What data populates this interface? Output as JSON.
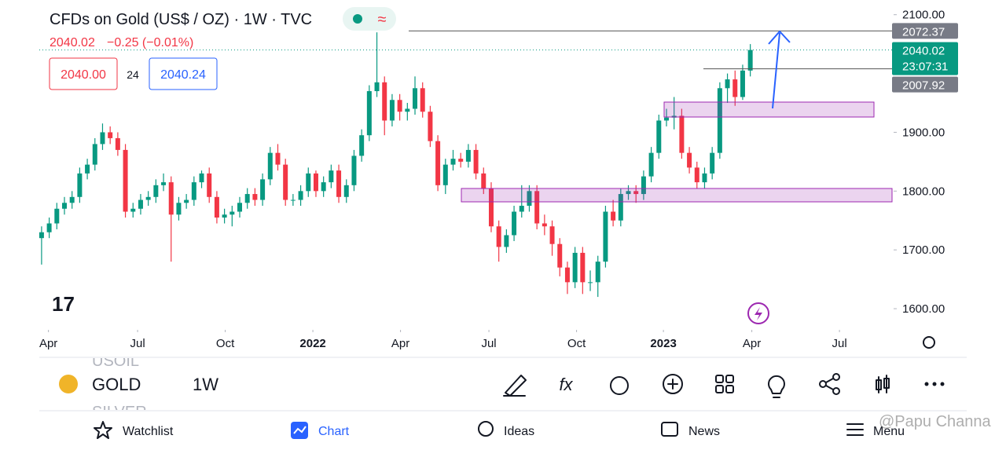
{
  "header": {
    "title": "CFDs on Gold (US$ / OZ) · 1W · TVC",
    "price": "2040.02",
    "change": "−0.25 (−0.01%)",
    "bid": "2040.00",
    "spread": "24",
    "ask": "2040.24"
  },
  "chart_data": {
    "type": "candlestick",
    "up_color": "#089981",
    "down_color": "#f23645",
    "x": [
      0,
      1,
      2,
      3,
      4,
      5,
      6,
      7,
      8,
      9,
      10,
      11,
      12,
      13,
      14,
      15,
      16,
      17,
      18,
      19,
      20,
      21,
      22,
      23,
      24,
      25,
      26,
      27,
      28,
      29,
      30,
      31,
      32,
      33,
      34,
      35,
      36,
      37,
      38,
      39,
      40,
      41,
      42,
      43,
      44,
      45,
      46,
      47,
      48,
      49,
      50,
      51,
      52,
      53,
      54,
      55,
      56,
      57,
      58,
      59,
      60,
      61,
      62,
      63,
      64,
      65,
      66,
      67,
      68,
      69,
      70,
      71,
      72,
      73,
      74,
      75,
      76,
      77,
      78,
      79,
      80,
      81,
      82,
      83,
      84,
      85,
      86,
      87,
      88,
      89,
      90,
      91,
      92,
      93
    ],
    "open": [
      1720,
      1730,
      1745,
      1770,
      1780,
      1790,
      1830,
      1845,
      1880,
      1900,
      1890,
      1870,
      1765,
      1770,
      1785,
      1790,
      1810,
      1815,
      1760,
      1780,
      1785,
      1815,
      1830,
      1790,
      1755,
      1760,
      1765,
      1780,
      1795,
      1785,
      1820,
      1865,
      1845,
      1785,
      1785,
      1800,
      1830,
      1800,
      1815,
      1835,
      1790,
      1810,
      1860,
      1895,
      1970,
      1985,
      1920,
      1955,
      1935,
      1940,
      1975,
      1935,
      1885,
      1810,
      1845,
      1855,
      1850,
      1870,
      1830,
      1805,
      1740,
      1705,
      1725,
      1765,
      1775,
      1800,
      1745,
      1740,
      1710,
      1670,
      1645,
      1695,
      1645,
      1645,
      1680,
      1765,
      1750,
      1795,
      1800,
      1795,
      1825,
      1865,
      1920,
      1925,
      1928,
      1865,
      1840,
      1815,
      1830,
      1865,
      1975,
      1990,
      1960,
      2005
    ],
    "high": [
      1740,
      1755,
      1780,
      1790,
      1800,
      1840,
      1855,
      1890,
      1915,
      1910,
      1900,
      1880,
      1780,
      1795,
      1800,
      1820,
      1830,
      1825,
      1790,
      1795,
      1825,
      1835,
      1840,
      1800,
      1770,
      1775,
      1790,
      1805,
      1805,
      1830,
      1875,
      1880,
      1855,
      1795,
      1810,
      1840,
      1835,
      1825,
      1845,
      1845,
      1820,
      1870,
      1905,
      1980,
      2070,
      1995,
      1965,
      1965,
      1950,
      1995,
      1985,
      1945,
      1895,
      1855,
      1870,
      1865,
      1880,
      1880,
      1840,
      1815,
      1750,
      1735,
      1775,
      1810,
      1810,
      1810,
      1760,
      1750,
      1720,
      1680,
      1705,
      1705,
      1665,
      1690,
      1775,
      1785,
      1805,
      1810,
      1810,
      1835,
      1875,
      1930,
      1940,
      1960,
      1940,
      1875,
      1850,
      1840,
      1875,
      1985,
      2000,
      2005,
      2015,
      2050
    ],
    "low": [
      1675,
      1720,
      1735,
      1760,
      1770,
      1780,
      1820,
      1835,
      1870,
      1880,
      1860,
      1755,
      1755,
      1760,
      1775,
      1780,
      1800,
      1680,
      1750,
      1770,
      1775,
      1805,
      1780,
      1745,
      1745,
      1740,
      1755,
      1770,
      1775,
      1775,
      1810,
      1835,
      1775,
      1775,
      1775,
      1790,
      1790,
      1790,
      1805,
      1780,
      1780,
      1800,
      1850,
      1885,
      1960,
      1895,
      1910,
      1920,
      1920,
      1930,
      1925,
      1875,
      1800,
      1795,
      1835,
      1840,
      1840,
      1820,
      1795,
      1730,
      1680,
      1695,
      1715,
      1755,
      1765,
      1735,
      1725,
      1690,
      1655,
      1625,
      1635,
      1625,
      1630,
      1620,
      1670,
      1740,
      1740,
      1785,
      1780,
      1785,
      1815,
      1855,
      1910,
      1905,
      1855,
      1830,
      1805,
      1805,
      1820,
      1855,
      1950,
      1945,
      1955,
      1995
    ],
    "close": [
      1730,
      1745,
      1770,
      1780,
      1790,
      1830,
      1845,
      1880,
      1900,
      1890,
      1870,
      1765,
      1770,
      1785,
      1790,
      1810,
      1815,
      1760,
      1780,
      1785,
      1815,
      1830,
      1790,
      1755,
      1760,
      1765,
      1780,
      1795,
      1785,
      1820,
      1865,
      1845,
      1785,
      1785,
      1800,
      1830,
      1800,
      1815,
      1835,
      1790,
      1810,
      1860,
      1895,
      1970,
      1985,
      1920,
      1955,
      1935,
      1940,
      1975,
      1935,
      1885,
      1810,
      1845,
      1855,
      1850,
      1870,
      1830,
      1805,
      1740,
      1705,
      1725,
      1765,
      1775,
      1800,
      1745,
      1740,
      1710,
      1670,
      1645,
      1695,
      1645,
      1645,
      1680,
      1765,
      1750,
      1795,
      1800,
      1795,
      1825,
      1865,
      1920,
      1925,
      1928,
      1865,
      1840,
      1815,
      1830,
      1865,
      1975,
      1990,
      1960,
      2005,
      2040
    ],
    "xlim": [
      -0.3,
      111.6
    ],
    "xticks": [
      {
        "value": 0.9,
        "label": "Apr"
      },
      {
        "value": 12.6,
        "label": "Jul"
      },
      {
        "value": 24.1,
        "label": "Oct"
      },
      {
        "value": 35.6,
        "label": "2022"
      },
      {
        "value": 47.1,
        "label": "Apr"
      },
      {
        "value": 58.7,
        "label": "Jul"
      },
      {
        "value": 70.2,
        "label": "Oct"
      },
      {
        "value": 81.6,
        "label": "2023"
      },
      {
        "value": 93.2,
        "label": "Apr"
      },
      {
        "value": 104.7,
        "label": "Jul"
      }
    ],
    "ylim": [
      1564,
      2125
    ],
    "yticks": [
      {
        "value": 1600,
        "label": "1600.00"
      },
      {
        "value": 1700,
        "label": "1700.00"
      },
      {
        "value": 1800,
        "label": "1800.00"
      },
      {
        "value": 1900,
        "label": "1900.00"
      },
      {
        "value": 2100,
        "label": "2100.00"
      }
    ],
    "price_tags": [
      {
        "value": 2072.37,
        "color": "#787b86"
      },
      {
        "value": 2040.02,
        "color": "#089981",
        "countdown": "23:07:31"
      },
      {
        "value": 2007.92,
        "color": "#787b86"
      }
    ]
  },
  "toolbar": {
    "symbols": [
      "USOIL",
      "GOLD",
      "SILVER"
    ],
    "interval": "1W"
  },
  "nav": [
    "Watchlist",
    "Chart",
    "Ideas",
    "News",
    "Menu"
  ],
  "watermark": "@Papu Channa"
}
